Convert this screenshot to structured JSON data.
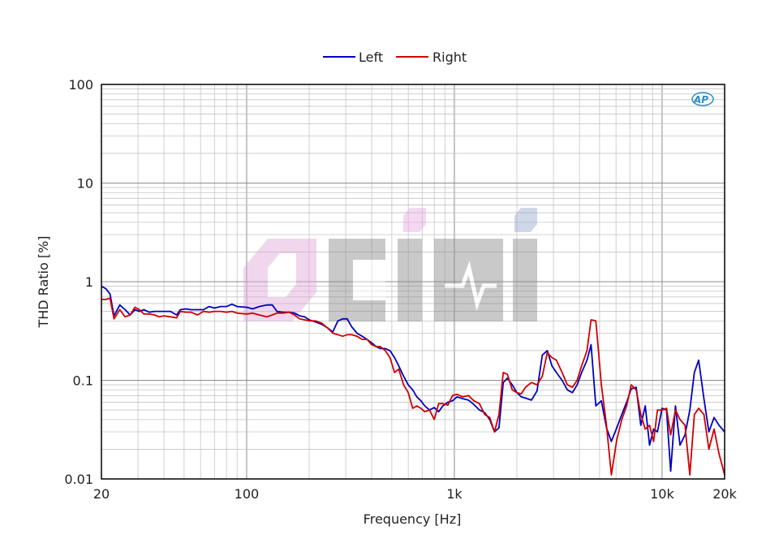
{
  "chart_data": {
    "type": "line",
    "xlabel": "Frequency [Hz]",
    "ylabel": "THD Ratio [%]",
    "xscale": "log",
    "yscale": "log",
    "xlim": [
      20,
      20000
    ],
    "ylim": [
      0.01,
      100
    ],
    "grid": true,
    "legend_position": "top-center",
    "x_tick_labels": [
      {
        "value": 20,
        "label": "20"
      },
      {
        "value": 100,
        "label": "100"
      },
      {
        "value": 1000,
        "label": "1k"
      },
      {
        "value": 10000,
        "label": "10k"
      },
      {
        "value": 20000,
        "label": "20k"
      }
    ],
    "y_tick_labels": [
      {
        "value": 100,
        "label": "100"
      },
      {
        "value": 10,
        "label": "10"
      },
      {
        "value": 1,
        "label": "1"
      },
      {
        "value": 0.1,
        "label": "0.1"
      },
      {
        "value": 0.01,
        "label": "0.01"
      }
    ],
    "series": [
      {
        "name": "Left",
        "color": "#0000c0",
        "points": [
          [
            20,
            0.9
          ],
          [
            21,
            0.85
          ],
          [
            22,
            0.75
          ],
          [
            23,
            0.45
          ],
          [
            24.5,
            0.58
          ],
          [
            26,
            0.52
          ],
          [
            27.5,
            0.46
          ],
          [
            29,
            0.52
          ],
          [
            30.5,
            0.5
          ],
          [
            32,
            0.52
          ],
          [
            34,
            0.49
          ],
          [
            36,
            0.5
          ],
          [
            38,
            0.5
          ],
          [
            40,
            0.5
          ],
          [
            43,
            0.5
          ],
          [
            46,
            0.46
          ],
          [
            48,
            0.52
          ],
          [
            51,
            0.53
          ],
          [
            54,
            0.52
          ],
          [
            58,
            0.52
          ],
          [
            62,
            0.52
          ],
          [
            66,
            0.56
          ],
          [
            70,
            0.54
          ],
          [
            75,
            0.56
          ],
          [
            80,
            0.56
          ],
          [
            85,
            0.59
          ],
          [
            90,
            0.56
          ],
          [
            100,
            0.55
          ],
          [
            107,
            0.53
          ],
          [
            115,
            0.56
          ],
          [
            125,
            0.58
          ],
          [
            133,
            0.58
          ],
          [
            140,
            0.5
          ],
          [
            150,
            0.49
          ],
          [
            160,
            0.49
          ],
          [
            170,
            0.48
          ],
          [
            180,
            0.45
          ],
          [
            190,
            0.44
          ],
          [
            200,
            0.41
          ],
          [
            215,
            0.39
          ],
          [
            230,
            0.37
          ],
          [
            245,
            0.34
          ],
          [
            260,
            0.31
          ],
          [
            275,
            0.4
          ],
          [
            290,
            0.42
          ],
          [
            305,
            0.42
          ],
          [
            320,
            0.35
          ],
          [
            340,
            0.3
          ],
          [
            360,
            0.28
          ],
          [
            380,
            0.26
          ],
          [
            400,
            0.24
          ],
          [
            420,
            0.22
          ],
          [
            440,
            0.21
          ],
          [
            465,
            0.21
          ],
          [
            490,
            0.2
          ],
          [
            515,
            0.17
          ],
          [
            540,
            0.14
          ],
          [
            570,
            0.11
          ],
          [
            600,
            0.09
          ],
          [
            630,
            0.08
          ],
          [
            660,
            0.068
          ],
          [
            690,
            0.062
          ],
          [
            720,
            0.055
          ],
          [
            760,
            0.05
          ],
          [
            800,
            0.053
          ],
          [
            840,
            0.048
          ],
          [
            880,
            0.055
          ],
          [
            930,
            0.06
          ],
          [
            980,
            0.062
          ],
          [
            1030,
            0.068
          ],
          [
            1100,
            0.065
          ],
          [
            1170,
            0.063
          ],
          [
            1240,
            0.057
          ],
          [
            1320,
            0.05
          ],
          [
            1400,
            0.047
          ],
          [
            1480,
            0.04
          ],
          [
            1560,
            0.03
          ],
          [
            1640,
            0.033
          ],
          [
            1720,
            0.095
          ],
          [
            1800,
            0.105
          ],
          [
            1900,
            0.09
          ],
          [
            2000,
            0.075
          ],
          [
            2100,
            0.068
          ],
          [
            2200,
            0.066
          ],
          [
            2350,
            0.063
          ],
          [
            2500,
            0.078
          ],
          [
            2650,
            0.18
          ],
          [
            2800,
            0.2
          ],
          [
            2950,
            0.14
          ],
          [
            3100,
            0.12
          ],
          [
            3300,
            0.1
          ],
          [
            3500,
            0.08
          ],
          [
            3700,
            0.075
          ],
          [
            3900,
            0.09
          ],
          [
            4100,
            0.12
          ],
          [
            4350,
            0.16
          ],
          [
            4550,
            0.23
          ],
          [
            4800,
            0.055
          ],
          [
            5100,
            0.062
          ],
          [
            5400,
            0.033
          ],
          [
            5700,
            0.024
          ],
          [
            6050,
            0.033
          ],
          [
            6400,
            0.045
          ],
          [
            6750,
            0.06
          ],
          [
            7100,
            0.082
          ],
          [
            7500,
            0.085
          ],
          [
            7900,
            0.035
          ],
          [
            8300,
            0.055
          ],
          [
            8700,
            0.022
          ],
          [
            9100,
            0.032
          ],
          [
            9500,
            0.03
          ],
          [
            10000,
            0.052
          ],
          [
            10500,
            0.05
          ],
          [
            11000,
            0.012
          ],
          [
            11600,
            0.055
          ],
          [
            12200,
            0.022
          ],
          [
            12900,
            0.028
          ],
          [
            13600,
            0.05
          ],
          [
            14300,
            0.12
          ],
          [
            15000,
            0.16
          ],
          [
            15900,
            0.065
          ],
          [
            16800,
            0.03
          ],
          [
            17800,
            0.042
          ],
          [
            18800,
            0.035
          ],
          [
            20000,
            0.03
          ]
        ]
      },
      {
        "name": "Right",
        "color": "#d00000",
        "points": [
          [
            20,
            0.66
          ],
          [
            21,
            0.66
          ],
          [
            22,
            0.68
          ],
          [
            23,
            0.42
          ],
          [
            24.5,
            0.52
          ],
          [
            26,
            0.44
          ],
          [
            27.5,
            0.46
          ],
          [
            29,
            0.55
          ],
          [
            30.5,
            0.52
          ],
          [
            32,
            0.47
          ],
          [
            34,
            0.47
          ],
          [
            36,
            0.46
          ],
          [
            38,
            0.44
          ],
          [
            40,
            0.45
          ],
          [
            43,
            0.44
          ],
          [
            46,
            0.43
          ],
          [
            48,
            0.5
          ],
          [
            51,
            0.49
          ],
          [
            54,
            0.49
          ],
          [
            58,
            0.46
          ],
          [
            62,
            0.5
          ],
          [
            66,
            0.49
          ],
          [
            70,
            0.5
          ],
          [
            75,
            0.5
          ],
          [
            80,
            0.49
          ],
          [
            85,
            0.5
          ],
          [
            90,
            0.48
          ],
          [
            100,
            0.47
          ],
          [
            107,
            0.48
          ],
          [
            115,
            0.46
          ],
          [
            125,
            0.44
          ],
          [
            133,
            0.46
          ],
          [
            140,
            0.48
          ],
          [
            150,
            0.48
          ],
          [
            160,
            0.49
          ],
          [
            170,
            0.46
          ],
          [
            180,
            0.42
          ],
          [
            190,
            0.41
          ],
          [
            200,
            0.4
          ],
          [
            215,
            0.4
          ],
          [
            230,
            0.38
          ],
          [
            245,
            0.34
          ],
          [
            260,
            0.3
          ],
          [
            275,
            0.29
          ],
          [
            290,
            0.28
          ],
          [
            305,
            0.29
          ],
          [
            320,
            0.29
          ],
          [
            340,
            0.28
          ],
          [
            360,
            0.26
          ],
          [
            380,
            0.26
          ],
          [
            400,
            0.23
          ],
          [
            420,
            0.22
          ],
          [
            440,
            0.22
          ],
          [
            465,
            0.2
          ],
          [
            490,
            0.17
          ],
          [
            515,
            0.12
          ],
          [
            540,
            0.13
          ],
          [
            570,
            0.09
          ],
          [
            600,
            0.075
          ],
          [
            630,
            0.052
          ],
          [
            660,
            0.055
          ],
          [
            690,
            0.052
          ],
          [
            720,
            0.048
          ],
          [
            760,
            0.05
          ],
          [
            800,
            0.04
          ],
          [
            840,
            0.058
          ],
          [
            880,
            0.058
          ],
          [
            930,
            0.056
          ],
          [
            980,
            0.07
          ],
          [
            1030,
            0.072
          ],
          [
            1100,
            0.068
          ],
          [
            1170,
            0.07
          ],
          [
            1240,
            0.062
          ],
          [
            1320,
            0.058
          ],
          [
            1400,
            0.045
          ],
          [
            1480,
            0.042
          ],
          [
            1560,
            0.03
          ],
          [
            1640,
            0.045
          ],
          [
            1720,
            0.12
          ],
          [
            1800,
            0.115
          ],
          [
            1900,
            0.08
          ],
          [
            2000,
            0.075
          ],
          [
            2100,
            0.073
          ],
          [
            2200,
            0.085
          ],
          [
            2350,
            0.095
          ],
          [
            2500,
            0.09
          ],
          [
            2650,
            0.11
          ],
          [
            2800,
            0.19
          ],
          [
            2950,
            0.17
          ],
          [
            3100,
            0.16
          ],
          [
            3300,
            0.12
          ],
          [
            3500,
            0.09
          ],
          [
            3700,
            0.085
          ],
          [
            3900,
            0.1
          ],
          [
            4100,
            0.14
          ],
          [
            4350,
            0.2
          ],
          [
            4550,
            0.41
          ],
          [
            4800,
            0.4
          ],
          [
            5100,
            0.09
          ],
          [
            5400,
            0.035
          ],
          [
            5700,
            0.011
          ],
          [
            6050,
            0.025
          ],
          [
            6400,
            0.04
          ],
          [
            6750,
            0.055
          ],
          [
            7100,
            0.09
          ],
          [
            7500,
            0.08
          ],
          [
            7900,
            0.045
          ],
          [
            8300,
            0.032
          ],
          [
            8700,
            0.035
          ],
          [
            9100,
            0.024
          ],
          [
            9500,
            0.05
          ],
          [
            10000,
            0.05
          ],
          [
            10500,
            0.052
          ],
          [
            11000,
            0.028
          ],
          [
            11600,
            0.05
          ],
          [
            12200,
            0.04
          ],
          [
            12900,
            0.035
          ],
          [
            13600,
            0.011
          ],
          [
            14300,
            0.045
          ],
          [
            15000,
            0.052
          ],
          [
            15900,
            0.045
          ],
          [
            16800,
            0.02
          ],
          [
            17800,
            0.032
          ],
          [
            18800,
            0.018
          ],
          [
            20000,
            0.011
          ]
        ]
      }
    ]
  },
  "branding": {
    "ap_logo_text": "AP",
    "watermark_text": "CIHI"
  }
}
